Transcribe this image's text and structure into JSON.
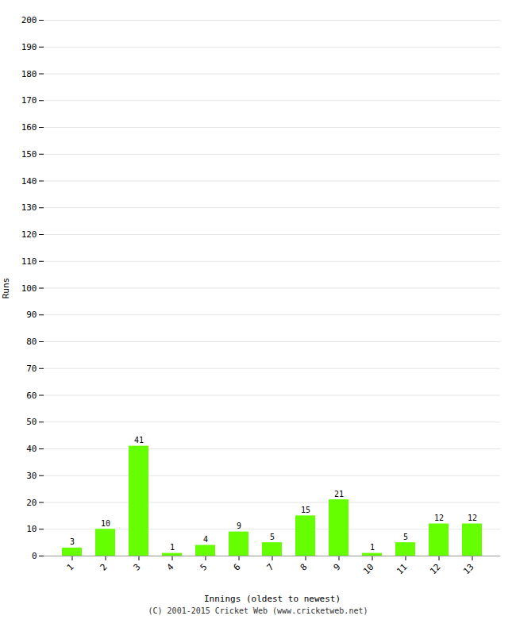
{
  "chart_data": {
    "type": "bar",
    "categories": [
      "1",
      "2",
      "3",
      "4",
      "5",
      "6",
      "7",
      "8",
      "9",
      "10",
      "11",
      "12",
      "13"
    ],
    "values": [
      3,
      10,
      41,
      1,
      4,
      9,
      5,
      15,
      21,
      1,
      5,
      12,
      12
    ],
    "color": "#66ff00",
    "xlabel": "Innings (oldest to newest)",
    "ylabel": "Runs",
    "ylim": [
      0,
      200
    ],
    "yticks": [
      0,
      10,
      20,
      30,
      40,
      50,
      60,
      70,
      80,
      90,
      100,
      110,
      120,
      130,
      140,
      150,
      160,
      170,
      180,
      190,
      200
    ],
    "grid": true,
    "data_labels": true,
    "caption": "(C) 2001-2015 Cricket Web (www.cricketweb.net)"
  }
}
